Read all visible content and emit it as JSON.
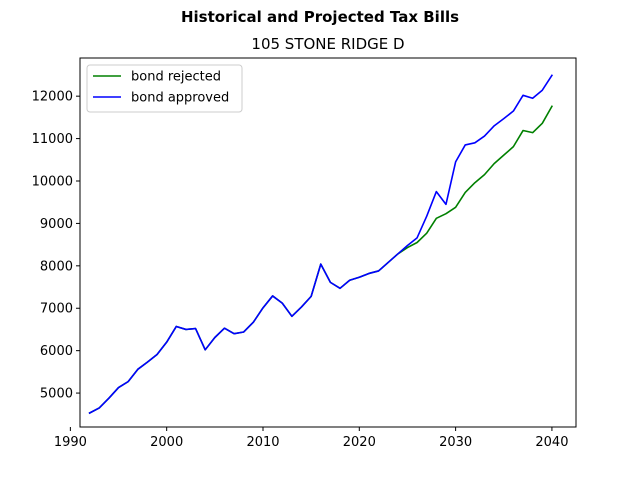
{
  "chart_data": {
    "type": "line",
    "title": "Historical and Projected Tax Bills",
    "subtitle": "105 STONE RIDGE D",
    "xlabel": "",
    "ylabel": "",
    "xlim": [
      1991,
      2042.5
    ],
    "ylim": [
      4200,
      12900
    ],
    "xticks": [
      1990,
      2000,
      2010,
      2020,
      2030,
      2040
    ],
    "yticks": [
      5000,
      6000,
      7000,
      8000,
      9000,
      10000,
      11000,
      12000
    ],
    "grid": false,
    "legend_position": "top-left",
    "series": [
      {
        "name": "bond rejected",
        "color": "#008000",
        "x": [
          1992,
          1993,
          1994,
          1995,
          1996,
          1997,
          1998,
          1999,
          2000,
          2001,
          2002,
          2003,
          2004,
          2005,
          2006,
          2007,
          2008,
          2009,
          2010,
          2011,
          2012,
          2013,
          2014,
          2015,
          2016,
          2017,
          2018,
          2019,
          2020,
          2021,
          2022,
          2023,
          2024,
          2025,
          2026,
          2027,
          2028,
          2029,
          2030,
          2031,
          2032,
          2033,
          2034,
          2035,
          2036,
          2037,
          2038,
          2039,
          2040
        ],
        "values": [
          4530,
          4650,
          4880,
          5130,
          5270,
          5560,
          5730,
          5910,
          6200,
          6570,
          6500,
          6520,
          6020,
          6310,
          6530,
          6400,
          6440,
          6670,
          7010,
          7290,
          7120,
          6810,
          7030,
          7280,
          8040,
          7610,
          7470,
          7660,
          7730,
          7820,
          7880,
          8080,
          8280,
          8430,
          8550,
          8770,
          9120,
          9230,
          9380,
          9730,
          9960,
          10150,
          10410,
          10610,
          10810,
          11190,
          11140,
          11360,
          11760
        ]
      },
      {
        "name": "bond approved",
        "color": "#0000ff",
        "x": [
          1992,
          1993,
          1994,
          1995,
          1996,
          1997,
          1998,
          1999,
          2000,
          2001,
          2002,
          2003,
          2004,
          2005,
          2006,
          2007,
          2008,
          2009,
          2010,
          2011,
          2012,
          2013,
          2014,
          2015,
          2016,
          2017,
          2018,
          2019,
          2020,
          2021,
          2022,
          2023,
          2024,
          2025,
          2026,
          2027,
          2028,
          2029,
          2030,
          2031,
          2032,
          2033,
          2034,
          2035,
          2036,
          2037,
          2038,
          2039,
          2040
        ],
        "values": [
          4530,
          4650,
          4880,
          5130,
          5270,
          5560,
          5730,
          5910,
          6200,
          6570,
          6500,
          6520,
          6020,
          6310,
          6530,
          6400,
          6440,
          6670,
          7010,
          7290,
          7120,
          6810,
          7030,
          7280,
          8040,
          7610,
          7470,
          7660,
          7730,
          7820,
          7880,
          8080,
          8280,
          8480,
          8660,
          9170,
          9750,
          9450,
          10450,
          10850,
          10900,
          11060,
          11300,
          11470,
          11650,
          12020,
          11950,
          12140,
          12490
        ]
      }
    ]
  }
}
